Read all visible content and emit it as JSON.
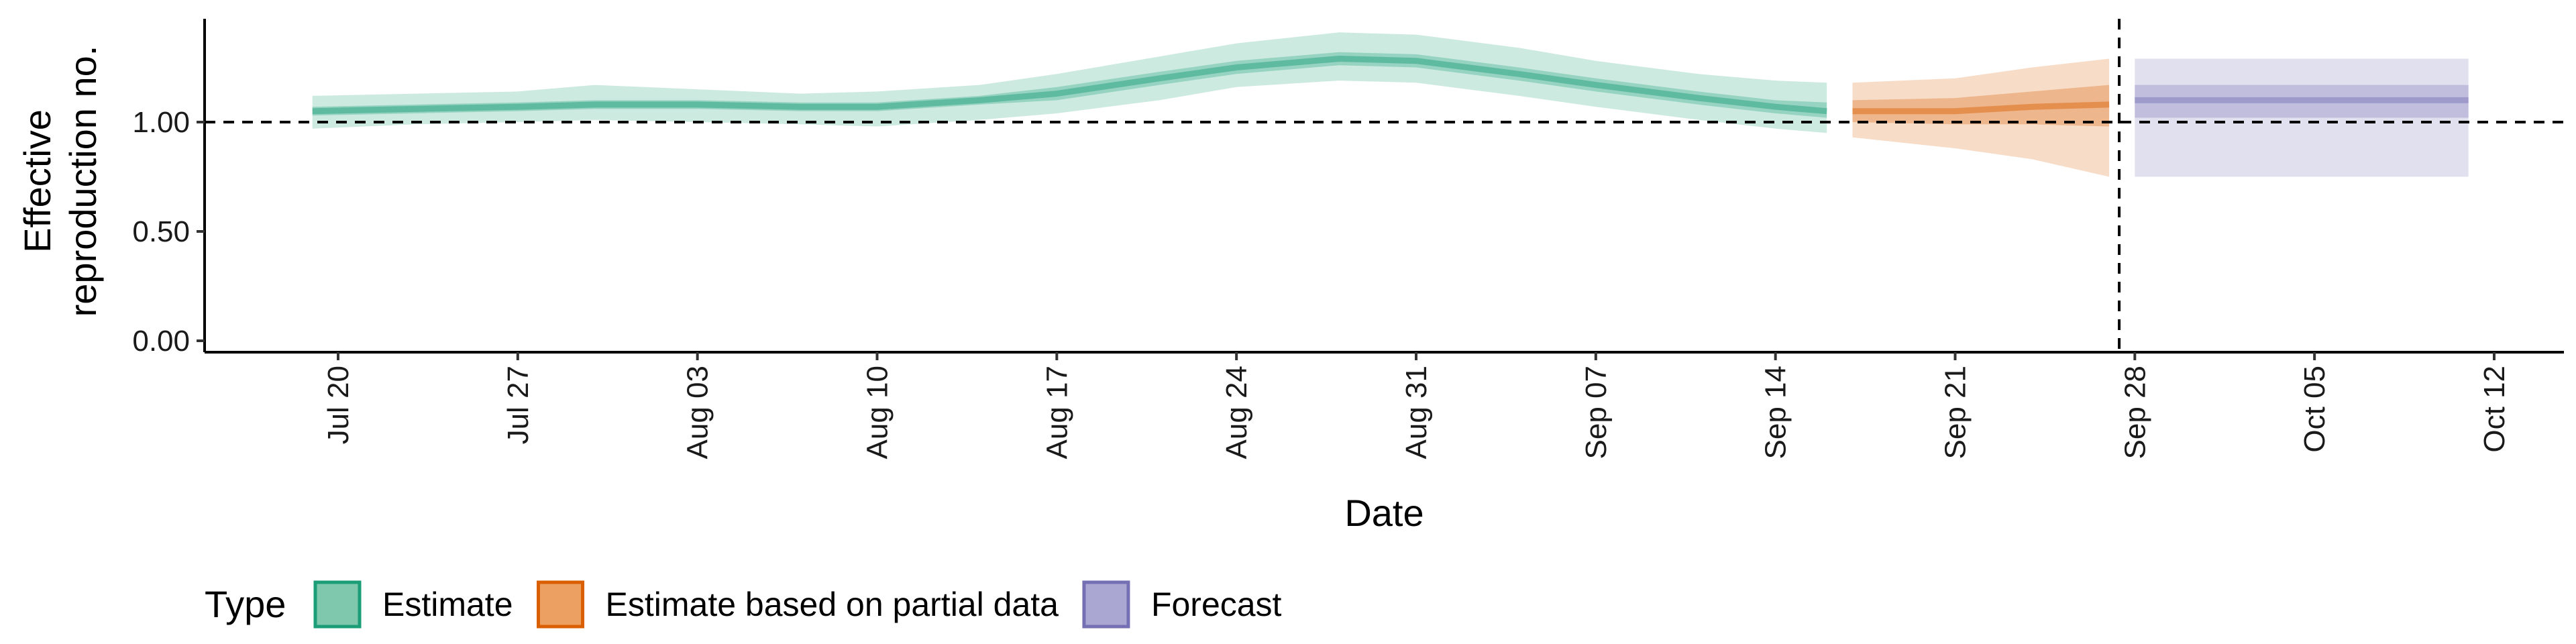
{
  "chart_data": {
    "type": "area",
    "xlabel": "Date",
    "ylabel": [
      "Effective",
      "reproduction no."
    ],
    "ylim": [
      0,
      1.5
    ],
    "y_ticks": [
      {
        "value": 0,
        "label": "0.00"
      },
      {
        "value": 0.5,
        "label": "0.50"
      },
      {
        "value": 1,
        "label": "1.00"
      }
    ],
    "x_range": [
      "2020-07-18",
      "2020-10-14"
    ],
    "x_ticks": [
      {
        "date": "2020-07-20",
        "label": "Jul 20"
      },
      {
        "date": "2020-07-27",
        "label": "Jul 27"
      },
      {
        "date": "2020-08-03",
        "label": "Aug 03"
      },
      {
        "date": "2020-08-10",
        "label": "Aug 10"
      },
      {
        "date": "2020-08-17",
        "label": "Aug 17"
      },
      {
        "date": "2020-08-24",
        "label": "Aug 24"
      },
      {
        "date": "2020-08-31",
        "label": "Aug 31"
      },
      {
        "date": "2020-09-07",
        "label": "Sep 07"
      },
      {
        "date": "2020-09-14",
        "label": "Sep 14"
      },
      {
        "date": "2020-09-21",
        "label": "Sep 21"
      },
      {
        "date": "2020-09-28",
        "label": "Sep 28"
      },
      {
        "date": "2020-10-05",
        "label": "Oct 05"
      },
      {
        "date": "2020-10-12",
        "label": "Oct 12"
      }
    ],
    "reference_line_y": 1.0,
    "forecast_start_date": "2020-09-27",
    "grid": false,
    "legend": {
      "title": "Type",
      "position": "bottom-left",
      "entries": [
        {
          "label": "Estimate",
          "fill": "#7fc8ad",
          "stroke": "#1b9e77"
        },
        {
          "label": "Estimate based on partial data",
          "fill": "#eca061",
          "stroke": "#d95f02"
        },
        {
          "label": "Forecast",
          "fill": "#aaa7d3",
          "stroke": "#7570b3"
        }
      ]
    },
    "series": [
      {
        "name": "Estimate",
        "color": "#1b9e77",
        "points": [
          {
            "date": "2020-07-19",
            "median": 1.05,
            "lo50": 1.03,
            "hi50": 1.07,
            "lo90": 0.97,
            "hi90": 1.12
          },
          {
            "date": "2020-07-23",
            "median": 1.06,
            "lo50": 1.04,
            "hi50": 1.08,
            "lo90": 0.99,
            "hi90": 1.13
          },
          {
            "date": "2020-07-27",
            "median": 1.07,
            "lo50": 1.05,
            "hi50": 1.09,
            "lo90": 1.0,
            "hi90": 1.14
          },
          {
            "date": "2020-07-30",
            "median": 1.08,
            "lo50": 1.06,
            "hi50": 1.1,
            "lo90": 1.01,
            "hi90": 1.17
          },
          {
            "date": "2020-08-03",
            "median": 1.08,
            "lo50": 1.06,
            "hi50": 1.1,
            "lo90": 1.0,
            "hi90": 1.15
          },
          {
            "date": "2020-08-07",
            "median": 1.07,
            "lo50": 1.05,
            "hi50": 1.09,
            "lo90": 0.99,
            "hi90": 1.13
          },
          {
            "date": "2020-08-10",
            "median": 1.07,
            "lo50": 1.05,
            "hi50": 1.09,
            "lo90": 0.98,
            "hi90": 1.14
          },
          {
            "date": "2020-08-14",
            "median": 1.1,
            "lo50": 1.08,
            "hi50": 1.12,
            "lo90": 1.01,
            "hi90": 1.17
          },
          {
            "date": "2020-08-17",
            "median": 1.13,
            "lo50": 1.1,
            "hi50": 1.16,
            "lo90": 1.04,
            "hi90": 1.22
          },
          {
            "date": "2020-08-21",
            "median": 1.2,
            "lo50": 1.17,
            "hi50": 1.23,
            "lo90": 1.1,
            "hi90": 1.3
          },
          {
            "date": "2020-08-24",
            "median": 1.25,
            "lo50": 1.22,
            "hi50": 1.28,
            "lo90": 1.16,
            "hi90": 1.36
          },
          {
            "date": "2020-08-28",
            "median": 1.29,
            "lo50": 1.26,
            "hi50": 1.32,
            "lo90": 1.19,
            "hi90": 1.41
          },
          {
            "date": "2020-08-31",
            "median": 1.28,
            "lo50": 1.25,
            "hi50": 1.31,
            "lo90": 1.18,
            "hi90": 1.4
          },
          {
            "date": "2020-09-04",
            "median": 1.22,
            "lo50": 1.19,
            "hi50": 1.25,
            "lo90": 1.12,
            "hi90": 1.34
          },
          {
            "date": "2020-09-07",
            "median": 1.17,
            "lo50": 1.14,
            "hi50": 1.2,
            "lo90": 1.07,
            "hi90": 1.28
          },
          {
            "date": "2020-09-11",
            "median": 1.11,
            "lo50": 1.08,
            "hi50": 1.14,
            "lo90": 1.01,
            "hi90": 1.22
          },
          {
            "date": "2020-09-14",
            "median": 1.07,
            "lo50": 1.04,
            "hi50": 1.1,
            "lo90": 0.97,
            "hi90": 1.19
          },
          {
            "date": "2020-09-16",
            "median": 1.05,
            "lo50": 1.02,
            "hi50": 1.09,
            "lo90": 0.95,
            "hi90": 1.18
          }
        ]
      },
      {
        "name": "Estimate based on partial data",
        "color": "#d95f02",
        "points": [
          {
            "date": "2020-09-17",
            "median": 1.05,
            "lo50": 1.0,
            "hi50": 1.1,
            "lo90": 0.93,
            "hi90": 1.18
          },
          {
            "date": "2020-09-21",
            "median": 1.05,
            "lo50": 0.99,
            "hi50": 1.11,
            "lo90": 0.88,
            "hi90": 1.2
          },
          {
            "date": "2020-09-24",
            "median": 1.07,
            "lo50": 0.99,
            "hi50": 1.14,
            "lo90": 0.83,
            "hi90": 1.25
          },
          {
            "date": "2020-09-27",
            "median": 1.08,
            "lo50": 0.98,
            "hi50": 1.17,
            "lo90": 0.75,
            "hi90": 1.29
          }
        ]
      },
      {
        "name": "Forecast",
        "color": "#7570b3",
        "points": [
          {
            "date": "2020-09-28",
            "median": 1.1,
            "lo50": 1.02,
            "hi50": 1.17,
            "lo90": 0.75,
            "hi90": 1.29
          },
          {
            "date": "2020-10-11",
            "median": 1.1,
            "lo50": 1.02,
            "hi50": 1.17,
            "lo90": 0.75,
            "hi90": 1.29
          }
        ]
      }
    ]
  }
}
